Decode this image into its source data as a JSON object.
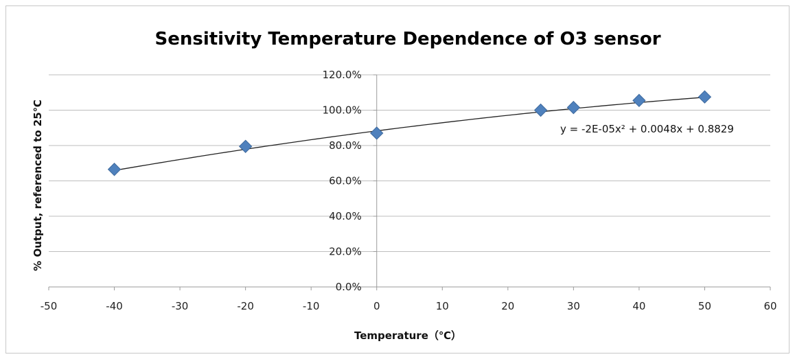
{
  "chart_data": {
    "type": "scatter",
    "title": "Sensitivity Temperature Dependence of O3 sensor",
    "xlabel": "Temperature（℃）",
    "ylabel": "% Output, referenced to 25℃",
    "xlim": [
      -50,
      60
    ],
    "ylim": [
      0,
      1.2
    ],
    "x_ticks": [
      -50,
      -40,
      -30,
      -20,
      -10,
      0,
      10,
      20,
      30,
      40,
      50,
      60
    ],
    "y_ticks": [
      0,
      0.2,
      0.4,
      0.6,
      0.8,
      1.0,
      1.2
    ],
    "y_tick_labels": [
      "0.0%",
      "20.0%",
      "40.0%",
      "60.0%",
      "80.0%",
      "100.0%",
      "120.0%"
    ],
    "grid": "horizontal",
    "legend": "none",
    "series": [
      {
        "x": [
          -40,
          -20,
          0,
          25,
          30,
          40,
          50
        ],
        "y": [
          0.665,
          0.795,
          0.87,
          1.0,
          1.015,
          1.055,
          1.075
        ],
        "color": "#4f81bd",
        "marker": "diamond"
      }
    ],
    "trendline": {
      "type": "polynomial",
      "order": 2,
      "coefficients": [
        -2e-05,
        0.0048,
        0.8829
      ],
      "x_range": [
        -40,
        50
      ],
      "equation_label": "y = -2E-05x² + 0.0048x + 0.8829"
    }
  }
}
